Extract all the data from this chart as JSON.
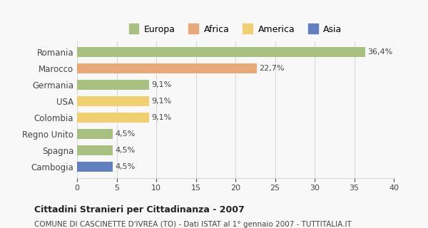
{
  "categories": [
    "Romania",
    "Marocco",
    "Germania",
    "USA",
    "Colombia",
    "Regno Unito",
    "Spagna",
    "Cambogia"
  ],
  "values": [
    36.4,
    22.7,
    9.1,
    9.1,
    9.1,
    4.5,
    4.5,
    4.5
  ],
  "labels": [
    "36,4%",
    "22,7%",
    "9,1%",
    "9,1%",
    "9,1%",
    "4,5%",
    "4,5%",
    "4,5%"
  ],
  "colors": [
    "#a8c080",
    "#e8a878",
    "#a8c080",
    "#f0d070",
    "#f0d070",
    "#a8c080",
    "#a8c080",
    "#6080c0"
  ],
  "legend_items": [
    "Europa",
    "Africa",
    "America",
    "Asia"
  ],
  "legend_colors": [
    "#a8c080",
    "#e8a878",
    "#f0d070",
    "#6080c0"
  ],
  "xlim": [
    0,
    40
  ],
  "xticks": [
    0,
    5,
    10,
    15,
    20,
    25,
    30,
    35,
    40
  ],
  "title": "Cittadini Stranieri per Cittadinanza - 2007",
  "subtitle": "COMUNE DI CASCINETTE D'IVREA (TO) - Dati ISTAT al 1° gennaio 2007 - TUTTITALIA.IT",
  "bg_color": "#f8f8f8",
  "grid_color": "#d8d8d8"
}
